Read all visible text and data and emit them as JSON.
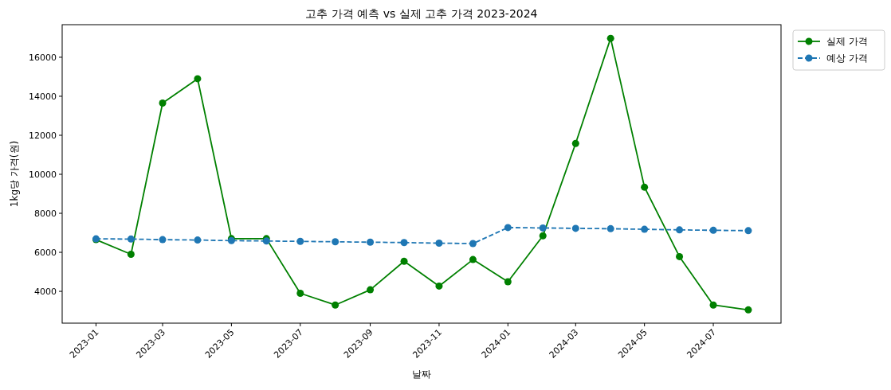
{
  "chart_data": {
    "type": "line",
    "title": "고추 가격 예측 vs 실제 고추 가격 2023-2024",
    "xlabel": "날짜",
    "ylabel": "1kg당 가격(원)",
    "x": [
      "2023-01",
      "2023-02",
      "2023-03",
      "2023-04",
      "2023-05",
      "2023-06",
      "2023-07",
      "2023-08",
      "2023-09",
      "2023-10",
      "2023-11",
      "2023-12",
      "2024-01",
      "2024-02",
      "2024-03",
      "2024-04",
      "2024-05",
      "2024-06",
      "2024-07",
      "2024-08"
    ],
    "series": [
      {
        "name": "실제 가격",
        "color": "#008000",
        "line_style": "solid",
        "values": [
          6650,
          5900,
          13650,
          14900,
          6700,
          6700,
          3900,
          3300,
          4080,
          5540,
          4270,
          5630,
          4490,
          6850,
          11580,
          16970,
          9340,
          5780,
          3300,
          3050
        ]
      },
      {
        "name": "예상 가격",
        "color": "#1f77b4",
        "line_style": "dashed",
        "values": [
          6690,
          6680,
          6650,
          6630,
          6600,
          6580,
          6560,
          6540,
          6520,
          6500,
          6470,
          6450,
          7270,
          7250,
          7230,
          7210,
          7180,
          7150,
          7130,
          7110
        ]
      }
    ],
    "marker": "circle",
    "legend": "top right",
    "grid": false,
    "xlim": [
      "2022-12-02",
      "2024-08-30"
    ],
    "xticks": [
      {
        "value": "2023-01",
        "label": "2023-01"
      },
      {
        "value": "2023-03",
        "label": "2023-03"
      },
      {
        "value": "2023-05",
        "label": "2023-05"
      },
      {
        "value": "2023-07",
        "label": "2023-07"
      },
      {
        "value": "2023-09",
        "label": "2023-09"
      },
      {
        "value": "2023-11",
        "label": "2023-11"
      },
      {
        "value": "2024-01",
        "label": "2024-01"
      },
      {
        "value": "2024-03",
        "label": "2024-03"
      },
      {
        "value": "2024-05",
        "label": "2024-05"
      },
      {
        "value": "2024-07",
        "label": "2024-07"
      }
    ],
    "ylim": [
      2370,
      17670
    ],
    "yticks": [
      4000,
      6000,
      8000,
      10000,
      12000,
      14000,
      16000
    ]
  }
}
